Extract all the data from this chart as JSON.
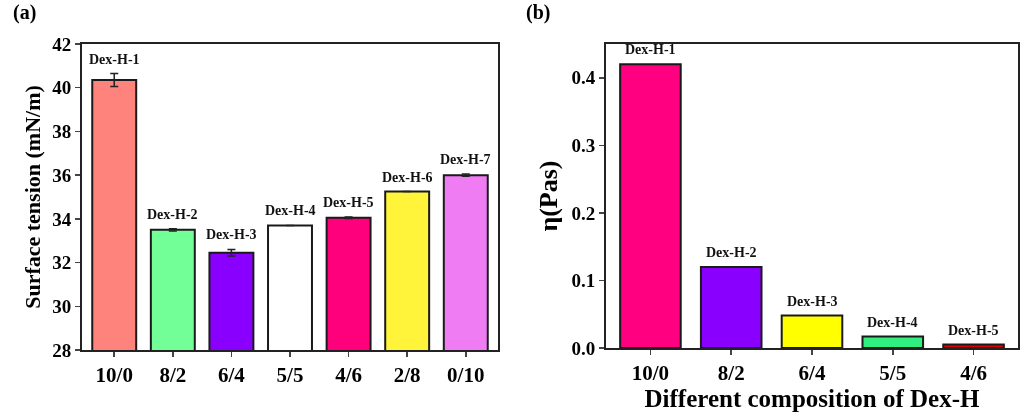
{
  "chart_data": [
    {
      "type": "bar",
      "title": "(a)",
      "ylabel": "Surface tension (mN/m)",
      "categories": [
        "10/0",
        "8/2",
        "6/4",
        "5/5",
        "4/6",
        "2/8",
        "0/10"
      ],
      "values": [
        40.35,
        33.5,
        32.45,
        33.7,
        34.05,
        35.25,
        36.0
      ],
      "errors": [
        0.3,
        0.05,
        0.15,
        null,
        0.03,
        null,
        0.05
      ],
      "colors": [
        "#ff837d",
        "#73ff97",
        "#8a00ff",
        "#ffffff",
        "#ff007c",
        "#fff43a",
        "#f07cf4"
      ],
      "ylim": [
        28,
        42
      ],
      "yticks": [
        28,
        30,
        32,
        34,
        36,
        38,
        40,
        42
      ],
      "annotations": [
        {
          "text": "Dex-H-1",
          "x": "10/0",
          "y": 40.65
        },
        {
          "text": "Dex-H-2",
          "x": "8/2",
          "y": 33.55
        },
        {
          "text": "Dex-H-3",
          "x": "6/4",
          "y": 32.6
        },
        {
          "text": "Dex-H-4",
          "x": "5/5",
          "y": 33.7
        },
        {
          "text": "Dex-H-5",
          "x": "4/6",
          "y": 34.08
        },
        {
          "text": "Dex-H-6",
          "x": "2/8",
          "y": 35.25
        },
        {
          "text": "Dex-H-7",
          "x": "0/10",
          "y": 36.05
        }
      ]
    },
    {
      "type": "bar",
      "title": "(b)",
      "xlabel": "Different composition of Dex-H",
      "ylabel": "η(Pas)",
      "categories": [
        "10/0",
        "8/2",
        "6/4",
        "5/5",
        "4/6"
      ],
      "values": [
        0.42,
        0.12,
        0.048,
        0.017,
        0.005
      ],
      "colors": [
        "#ff0080",
        "#8a00ff",
        "#ffff00",
        "#2ff07e",
        "#e00000"
      ],
      "ylim": [
        0,
        0.45
      ],
      "yticks": [
        {
          "value": 0,
          "label": "0.0"
        },
        0.1,
        0.2,
        0.3,
        0.4
      ],
      "annotations": [
        {
          "text": "Dex-H-1",
          "x": "10/0",
          "y": 0.42
        },
        {
          "text": "Dex-H-2",
          "x": "8/2",
          "y": 0.12
        },
        {
          "text": "Dex-H-3",
          "x": "6/4",
          "y": 0.048
        },
        {
          "text": "Dex-H-4",
          "x": "5/5",
          "y": 0.017
        },
        {
          "text": "Dex-H-5",
          "x": "4/6",
          "y": 0.005
        }
      ]
    }
  ]
}
